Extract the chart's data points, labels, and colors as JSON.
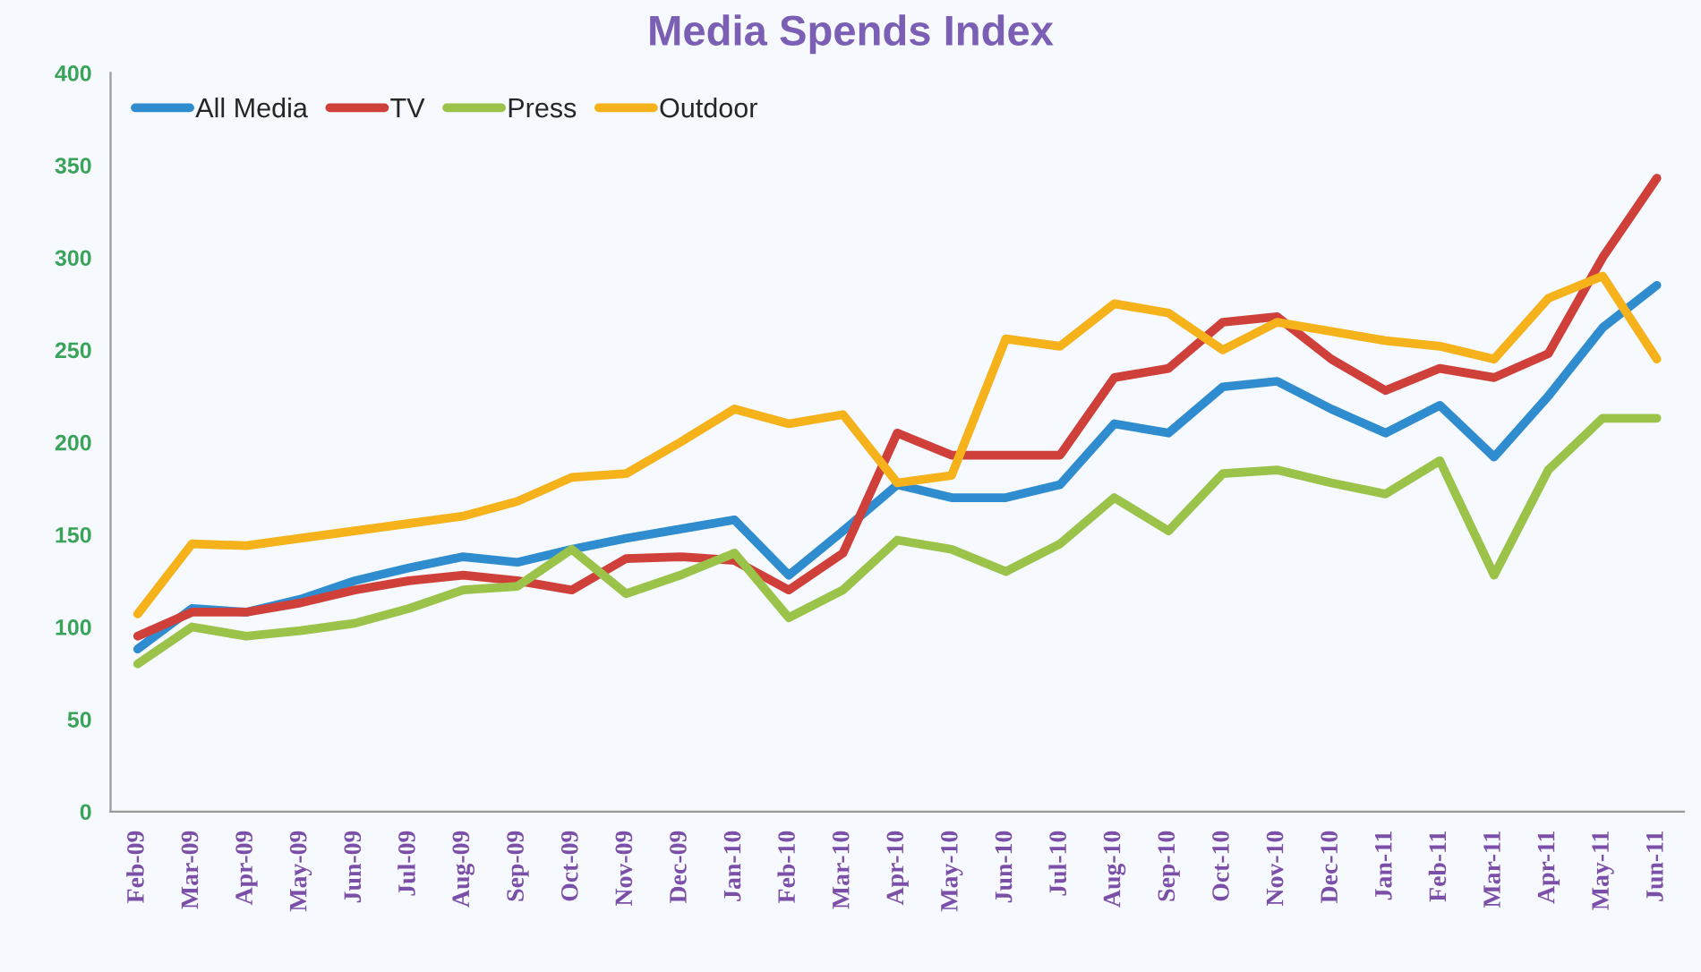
{
  "chart_data": {
    "type": "line",
    "title": "Media Spends Index",
    "categories": [
      "Feb-09",
      "Mar-09",
      "Apr-09",
      "May-09",
      "Jun-09",
      "Jul-09",
      "Aug-09",
      "Sep-09",
      "Oct-09",
      "Nov-09",
      "Dec-09",
      "Jan-10",
      "Feb-10",
      "Mar-10",
      "Apr-10",
      "May-10",
      "Jun-10",
      "Jul-10",
      "Aug-10",
      "Sep-10",
      "Oct-10",
      "Nov-10",
      "Dec-10",
      "Jan-11",
      "Feb-11",
      "Mar-11",
      "Apr-11",
      "May-11",
      "Jun-11"
    ],
    "series": [
      {
        "name": "All Media",
        "color": "#2e8ccf",
        "values": [
          88,
          110,
          108,
          115,
          125,
          132,
          138,
          135,
          142,
          148,
          153,
          158,
          128,
          152,
          177,
          170,
          170,
          177,
          210,
          205,
          230,
          233,
          218,
          205,
          220,
          192,
          225,
          262,
          285
        ]
      },
      {
        "name": "TV",
        "color": "#d0403a",
        "values": [
          95,
          108,
          108,
          113,
          120,
          125,
          128,
          125,
          120,
          137,
          138,
          136,
          120,
          140,
          205,
          193,
          193,
          193,
          235,
          240,
          265,
          268,
          245,
          228,
          240,
          235,
          248,
          300,
          343
        ]
      },
      {
        "name": "Press",
        "color": "#9bc34a",
        "values": [
          80,
          100,
          95,
          98,
          102,
          110,
          120,
          122,
          142,
          118,
          128,
          140,
          105,
          120,
          147,
          142,
          130,
          145,
          170,
          152,
          183,
          185,
          178,
          172,
          190,
          128,
          185,
          213,
          213
        ]
      },
      {
        "name": "Outdoor",
        "color": "#f5b21b",
        "values": [
          107,
          145,
          144,
          148,
          152,
          156,
          160,
          168,
          181,
          183,
          200,
          218,
          210,
          215,
          178,
          182,
          256,
          252,
          275,
          270,
          250,
          265,
          260,
          255,
          252,
          245,
          278,
          290,
          245
        ]
      }
    ],
    "ylim": [
      0,
      400
    ],
    "yticks": [
      0,
      50,
      100,
      150,
      200,
      250,
      300,
      350,
      400
    ],
    "grid": false,
    "legend": "top left",
    "marker": "none",
    "line_style": "solid"
  }
}
